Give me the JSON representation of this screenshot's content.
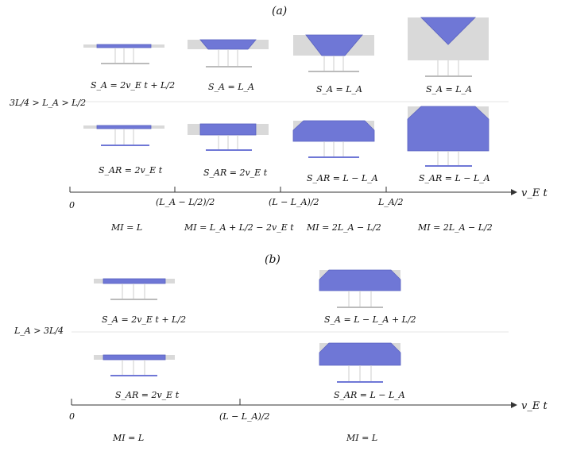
{
  "panel_a": {
    "title": "(a)",
    "condition": "3L/4 > L_A > L/2",
    "top_row_labels": [
      "S_A = 2v_E t + L/2",
      "S_A = L_A",
      "S_A = L_A",
      "S_A = L_A"
    ],
    "bottom_row_labels": [
      "S_AR = 2v_E t",
      "S_AR = 2v_E t",
      "S_AR = L − L_A",
      "S_AR = L − L_A"
    ],
    "axis_ticks": [
      "0",
      "(L_A − L/2)/2",
      "(L − L_A)/2",
      "L_A/2"
    ],
    "axis_label": "v_E t",
    "mi_labels": [
      "MI = L",
      "MI = L_A + L/2 − 2v_E t",
      "MI = 2L_A − L/2",
      "MI = 2L_A − L/2"
    ]
  },
  "panel_b": {
    "title": "(b)",
    "condition": "L_A > 3L/4",
    "top_row_labels": [
      "S_A = 2v_E t + L/2",
      "S_A = L − L_A + L/2"
    ],
    "bottom_row_labels": [
      "S_AR = 2v_E t",
      "S_AR = L − L_A"
    ],
    "axis_ticks": [
      "0",
      "(L − L_A)/2"
    ],
    "axis_label": "v_E t",
    "mi_labels": [
      "MI = L",
      "MI = L"
    ]
  },
  "colors": {
    "blue": "#6f77d6",
    "gray": "#d9d9d9",
    "line": "#333333"
  }
}
